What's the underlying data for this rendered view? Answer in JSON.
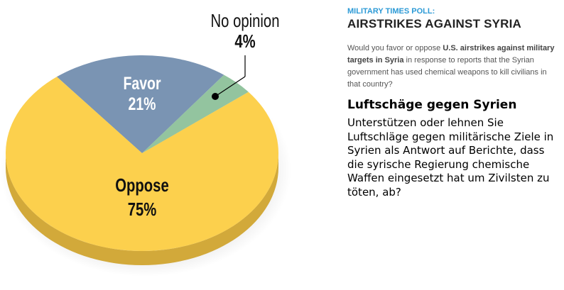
{
  "chart_data": {
    "type": "pie",
    "title": "AIRSTRIKES AGAINST SYRIA",
    "slices": [
      {
        "label": "Favor",
        "value": 21,
        "display": "21%",
        "color": "#7a94b3"
      },
      {
        "label": "No opinion",
        "value": 4,
        "display": "4%",
        "color": "#93c49f"
      },
      {
        "label": "Oppose",
        "value": 75,
        "display": "75%",
        "color": "#fcd04d"
      }
    ],
    "side_color": "#d2a93a"
  },
  "article": {
    "kicker": "MILITARY TIMES POLL:",
    "headline": "AIRSTRIKES AGAINST SYRIA",
    "question_pre": "Would you favor or oppose ",
    "question_bold": "U.S. airstrikes against military targets in Syria",
    "question_post": " in response to reports that the Syrian government has used chemical weapons to kill civilians in that country?"
  },
  "translation": {
    "title": "Luftschäge gegen Syrien",
    "body": "Unterstützen oder lehnen Sie Luftschläge gegen militärische Ziele in Syrien als Antwort auf Berichte, dass die syrische Regierung chemische Waffen eingesetzt hat um Zivilsten zu töten, ab?"
  }
}
